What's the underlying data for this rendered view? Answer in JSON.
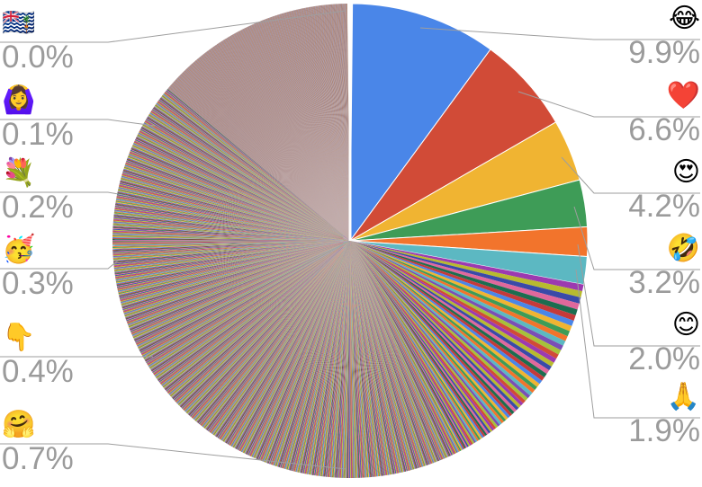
{
  "chart_data": {
    "type": "pie",
    "title": "",
    "start_angle": "top, clockwise",
    "slices": [
      {
        "label": "😂",
        "value": 9.9,
        "color": "#4a86e8"
      },
      {
        "label": "❤️",
        "value": 6.6,
        "color": "#d14b37"
      },
      {
        "label": "😍",
        "value": 4.2,
        "color": "#f0b432"
      },
      {
        "label": "🤣",
        "value": 3.2,
        "color": "#3e9c57"
      },
      {
        "label": "😊",
        "value": 2.0,
        "color": "#f2742c"
      },
      {
        "label": "🙏",
        "value": 1.9,
        "color": "#5cb8c2"
      }
    ],
    "left_labels": [
      {
        "label": "🇮🇴",
        "value": "0.0%"
      },
      {
        "label": "🙆‍♀️",
        "value": "0.1%"
      },
      {
        "label": "💐",
        "value": "0.2%"
      },
      {
        "label": "🥳",
        "value": "0.3%"
      },
      {
        "label": "👇",
        "value": "0.4%"
      },
      {
        "label": "🤗",
        "value": "0.7%"
      }
    ],
    "right_labels": [
      {
        "label": "😂",
        "value": "9.9%"
      },
      {
        "label": "❤️",
        "value": "6.6%"
      },
      {
        "label": "😍",
        "value": "4.2%"
      },
      {
        "label": "🤣",
        "value": "3.2%"
      },
      {
        "label": "😊",
        "value": "2.0%"
      },
      {
        "label": "🙏",
        "value": "1.9%"
      }
    ],
    "remainder_colors": [
      "#9c3ab0",
      "#b8ba2f",
      "#3a4aa8",
      "#e0689c",
      "#1c6d50",
      "#c53a3a",
      "#4a86e8",
      "#f0b432",
      "#3e9c57",
      "#f2742c",
      "#5cb8c2",
      "#7a4fb5",
      "#a6c23a",
      "#d14b37"
    ],
    "tail_color": "#a98378",
    "legend": "left and right columns"
  }
}
